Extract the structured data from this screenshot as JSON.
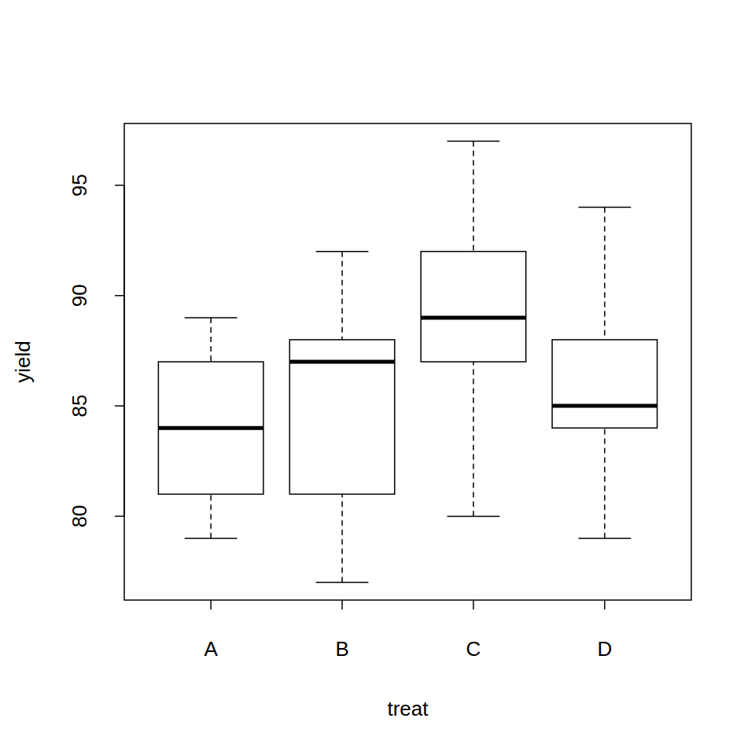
{
  "chart_data": {
    "type": "boxplot",
    "xlabel": "treat",
    "ylabel": "yield",
    "categories": [
      "A",
      "B",
      "C",
      "D"
    ],
    "min": [
      79,
      77,
      80,
      79
    ],
    "q1": [
      81,
      81,
      87,
      84
    ],
    "median": [
      84,
      87,
      89,
      85
    ],
    "q3": [
      87,
      88,
      92,
      88
    ],
    "max": [
      89,
      92,
      97,
      94
    ],
    "ylim": [
      76.2,
      97.8
    ],
    "yticks": [
      80,
      85,
      90,
      95
    ],
    "color": "#ffffff"
  }
}
